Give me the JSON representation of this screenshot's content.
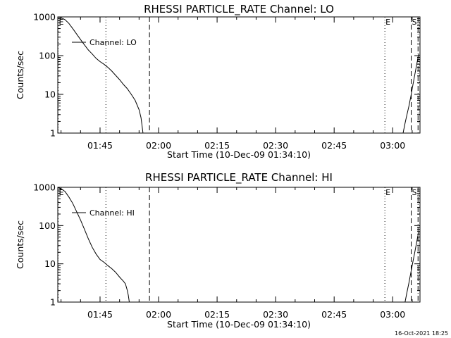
{
  "colors": {
    "background": "#ffffff",
    "foreground": "#000000"
  },
  "footer": {
    "timestamp": "16-Oct-2021 18:25"
  },
  "chart_data": [
    {
      "type": "line",
      "title": "RHESSI PARTICLE_RATE Channel: LO",
      "xlabel": "Start Time (10-Dec-09 01:34:10)",
      "ylabel": "Counts/sec",
      "yscale": "log",
      "xlim": [
        "01:34:10",
        "03:07:00"
      ],
      "ylim": [
        1,
        1000
      ],
      "xticks": [
        "01:45",
        "02:00",
        "02:15",
        "02:30",
        "02:45",
        "03:00"
      ],
      "yticks": [
        "1",
        "10",
        "100",
        "1000"
      ],
      "legend": {
        "label": "Channel: LO",
        "position": "top-left"
      },
      "markers": [
        {
          "time": "01:34:15",
          "style": "dotted",
          "label": "E"
        },
        {
          "time": "01:46:30",
          "style": "dotted",
          "label": ""
        },
        {
          "time": "01:57:40",
          "style": "dashed",
          "label": ""
        },
        {
          "time": "02:58:00",
          "style": "dotted",
          "label": "E"
        },
        {
          "time": "03:04:45",
          "style": "dashed",
          "label": "S"
        },
        {
          "time": "03:06:30",
          "style": "dashdot",
          "label": ""
        }
      ],
      "series": [
        {
          "name": "Channel: LO",
          "segments": [
            {
              "x": [
                "01:34:10",
                "01:35:00",
                "01:36:00",
                "01:37:00",
                "01:38:00",
                "01:39:00",
                "01:40:00",
                "01:41:00",
                "01:42:00",
                "01:43:00",
                "01:44:00",
                "01:45:00",
                "01:46:00",
                "01:47:00",
                "01:48:00",
                "01:49:00",
                "01:50:00",
                "01:51:00",
                "01:52:00",
                "01:53:00",
                "01:54:00",
                "01:55:00",
                "01:55:30",
                "01:55:45",
                "01:56:00"
              ],
              "y": [
                1000,
                950,
                850,
                680,
                500,
                360,
                260,
                190,
                140,
                110,
                85,
                70,
                60,
                50,
                40,
                31,
                24,
                18,
                14,
                10,
                7,
                4,
                2.5,
                1.6,
                1
              ]
            },
            {
              "x": [
                "03:02:40",
                "03:03:10",
                "03:03:40",
                "03:04:10",
                "03:04:40",
                "03:05:10",
                "03:05:40",
                "03:06:10",
                "03:06:40"
              ],
              "y": [
                1,
                1.8,
                3,
                5,
                9,
                17,
                32,
                60,
                110
              ]
            }
          ]
        }
      ]
    },
    {
      "type": "line",
      "title": "RHESSI PARTICLE_RATE Channel: HI",
      "xlabel": "Start Time (10-Dec-09 01:34:10)",
      "ylabel": "Counts/sec",
      "yscale": "log",
      "xlim": [
        "01:34:10",
        "03:07:00"
      ],
      "ylim": [
        1,
        1000
      ],
      "xticks": [
        "01:45",
        "02:00",
        "02:15",
        "02:30",
        "02:45",
        "03:00"
      ],
      "yticks": [
        "1",
        "10",
        "100",
        "1000"
      ],
      "legend": {
        "label": "Channel: HI",
        "position": "top-left"
      },
      "markers": [
        {
          "time": "01:34:15",
          "style": "dotted",
          "label": "E"
        },
        {
          "time": "01:46:30",
          "style": "dotted",
          "label": ""
        },
        {
          "time": "01:57:40",
          "style": "dashed",
          "label": ""
        },
        {
          "time": "02:58:00",
          "style": "dotted",
          "label": "E"
        },
        {
          "time": "03:04:45",
          "style": "dashed",
          "label": "S"
        },
        {
          "time": "03:06:30",
          "style": "dashdot",
          "label": ""
        }
      ],
      "series": [
        {
          "name": "Channel: HI",
          "segments": [
            {
              "x": [
                "01:34:10",
                "01:35:00",
                "01:36:00",
                "01:37:00",
                "01:38:00",
                "01:39:00",
                "01:40:00",
                "01:41:00",
                "01:42:00",
                "01:43:00",
                "01:44:00",
                "01:45:00",
                "01:46:00",
                "01:47:00",
                "01:48:00",
                "01:49:00",
                "01:50:00",
                "01:51:00",
                "01:51:30",
                "01:52:00",
                "01:52:15",
                "01:52:30"
              ],
              "y": [
                1000,
                920,
                780,
                560,
                380,
                230,
                140,
                80,
                45,
                27,
                18,
                13,
                11,
                9,
                7.5,
                6,
                4.5,
                3.5,
                3,
                2,
                1.5,
                1
              ]
            },
            {
              "x": [
                "03:03:10",
                "03:03:40",
                "03:04:10",
                "03:04:40",
                "03:05:10",
                "03:05:40",
                "03:06:10",
                "03:06:40"
              ],
              "y": [
                1,
                1.8,
                3.2,
                6,
                11,
                20,
                38,
                70
              ]
            }
          ]
        }
      ]
    }
  ]
}
